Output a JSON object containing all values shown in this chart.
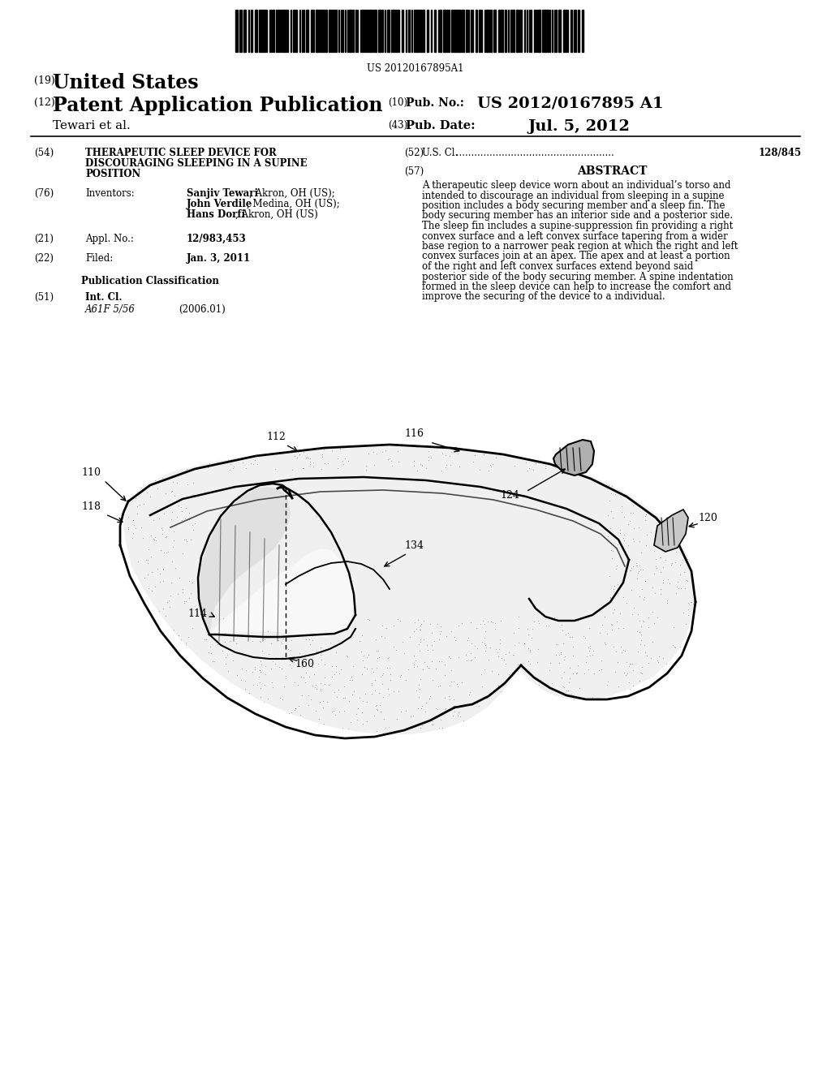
{
  "background_color": "#ffffff",
  "barcode_text": "US 20120167895A1",
  "header": {
    "country_num": "(19)",
    "country": "United States",
    "pub_num": "(12)",
    "pub_title": "Patent Application Publication",
    "pub_num2": "(10)",
    "pub_label": "Pub. No.:",
    "pub_value": "US 2012/0167895 A1",
    "author": "Tewari et al.",
    "date_num": "(43)",
    "date_label": "Pub. Date:",
    "date_value": "Jul. 5, 2012"
  },
  "left_col": {
    "title_num": "(54)",
    "title_line1": "THERAPEUTIC SLEEP DEVICE FOR",
    "title_line2": "DISCOURAGING SLEEPING IN A SUPINE",
    "title_line3": "POSITION",
    "inventors_num": "(76)",
    "inventors_label": "Inventors:",
    "inventor1_bold": "Sanjiv Tewari",
    "inventor1_rest": ", Akron, OH (US);",
    "inventor2_bold": "John Verdile",
    "inventor2_rest": ", Medina, OH (US);",
    "inventor3_bold": "Hans Dorfi",
    "inventor3_rest": ", Akron, OH (US)",
    "appl_num": "(21)",
    "appl_label": "Appl. No.:",
    "appl_value": "12/983,453",
    "filed_num": "(22)",
    "filed_label": "Filed:",
    "filed_value": "Jan. 3, 2011",
    "pub_class_header": "Publication Classification",
    "int_cl_num": "(51)",
    "int_cl_label": "Int. Cl.",
    "int_cl_value": "A61F 5/56",
    "int_cl_year": "(2006.01)"
  },
  "right_col": {
    "us_cl_num": "(52)",
    "us_cl_label": "U.S. Cl.",
    "us_cl_value": "128/845",
    "abstract_num": "(57)",
    "abstract_title": "ABSTRACT",
    "abstract_text": "A therapeutic sleep device worn about an individual’s torso and intended to discourage an individual from sleeping in a supine position includes a body securing member and a sleep fin. The body securing member has an interior side and a posterior side. The sleep fin includes a supine-suppression fin providing a right convex surface and a left convex surface tapering from a wider base region to a narrower peak region at which the right and left convex surfaces join at an apex. The apex and at least a portion of the right and left convex surfaces extend beyond said posterior side of the body securing member. A spine indentation formed in the sleep device can help to increase the comfort and improve the securing of the device to a individual."
  }
}
